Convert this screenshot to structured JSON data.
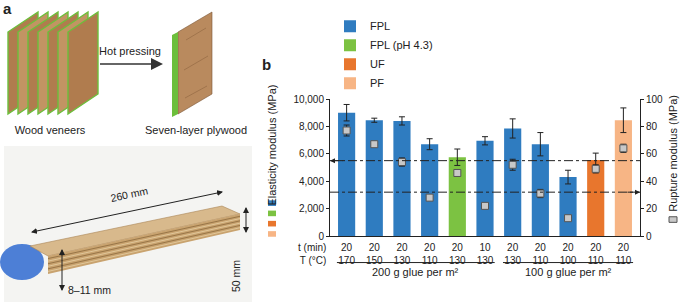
{
  "diagram": {
    "label": "a",
    "veneers": "Wood veneers",
    "process": "Hot pressing",
    "product": "Seven-layer plywood",
    "photo": {
      "length": "260 mm",
      "thickness": "8–11 mm",
      "width": "50 mm"
    }
  },
  "chart_data": {
    "label": "b",
    "type": "bar",
    "categories": [
      "20\n170",
      "20\n150",
      "20\n130",
      "20\n110",
      "20\n130",
      "10\n130",
      "20\n130",
      "20\n110",
      "20\n100",
      "20\n110",
      "20\n110"
    ],
    "x_row_labels": [
      "t (min)",
      "T (°C)"
    ],
    "groups": [
      {
        "label": "200 g glue per m²",
        "count": 6
      },
      {
        "label": "100 g glue per m²",
        "count": 5
      }
    ],
    "y_title": "Elasticity modulus (MPa)",
    "y2_title": "Rupture modulus (MPa)",
    "ylim": [
      0,
      10000
    ],
    "yticks": [
      0,
      {
        "value": 2000,
        "label": "2,000"
      },
      {
        "value": 4000,
        "label": "4,000"
      },
      {
        "value": 6000,
        "label": "6,000"
      },
      {
        "value": 8000,
        "label": "8,000"
      },
      {
        "value": 10000,
        "label": "10,000"
      }
    ],
    "y2lim": [
      0,
      100
    ],
    "y2ticks": [
      0,
      20,
      40,
      60,
      80,
      100
    ],
    "grid": false,
    "legend": "top left",
    "series": [
      {
        "name": "FPL",
        "color": "#2f7cc0",
        "values": [
          9000,
          8450,
          8400,
          6700,
          null,
          6950,
          7850,
          6700,
          4300,
          null,
          null
        ],
        "errors": [
          600,
          150,
          300,
          400,
          null,
          300,
          700,
          850,
          500,
          null,
          null
        ]
      },
      {
        "name": "FPL (pH 4.3)",
        "color": "#7cc242",
        "values": [
          null,
          null,
          null,
          null,
          5750,
          null,
          null,
          null,
          null,
          null,
          null
        ],
        "errors": [
          null,
          null,
          null,
          null,
          600,
          null,
          null,
          null,
          null,
          null,
          null
        ]
      },
      {
        "name": "UF",
        "color": "#e8762d",
        "values": [
          null,
          null,
          null,
          null,
          null,
          null,
          null,
          null,
          null,
          5550,
          null
        ],
        "errors": [
          null,
          null,
          null,
          null,
          null,
          null,
          null,
          null,
          null,
          500,
          null
        ]
      },
      {
        "name": "PF",
        "color": "#f7b585",
        "values": [
          null,
          null,
          null,
          null,
          null,
          null,
          null,
          null,
          null,
          null,
          8450
        ],
        "errors": [
          null,
          null,
          null,
          null,
          null,
          null,
          null,
          null,
          null,
          null,
          900
        ]
      },
      {
        "type": "scatter",
        "axis": "y2",
        "marker": "square",
        "color": "#c8c8c8",
        "values": [
          77,
          67,
          54,
          28,
          46,
          22,
          52,
          31,
          13,
          49,
          64
        ],
        "errors": [
          4,
          1,
          3,
          1,
          2,
          1,
          4,
          3,
          1,
          3,
          3
        ]
      }
    ],
    "reference_lines": [
      {
        "axis": "y",
        "value": 5500
      },
      {
        "axis": "y2",
        "value": 32
      }
    ]
  }
}
